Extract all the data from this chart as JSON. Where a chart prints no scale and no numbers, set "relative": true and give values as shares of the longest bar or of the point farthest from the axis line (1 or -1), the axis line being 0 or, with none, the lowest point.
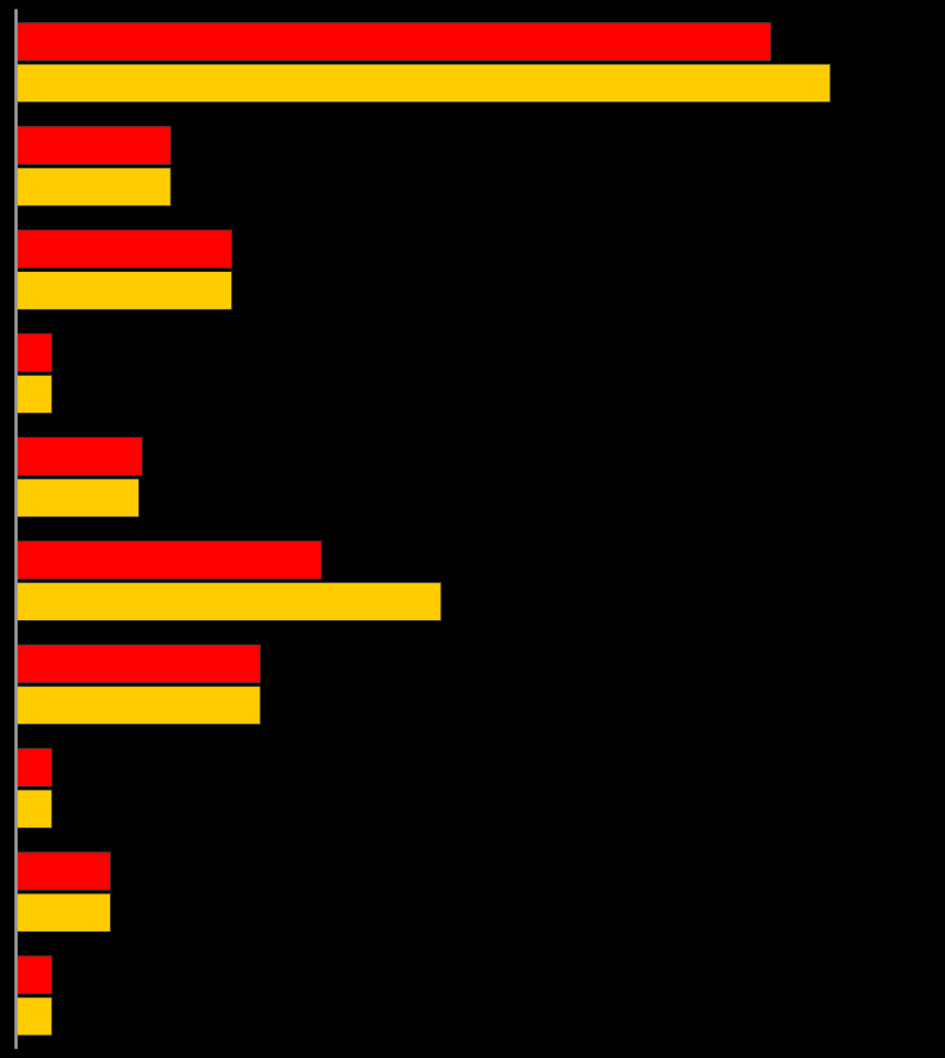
{
  "chart_data": {
    "type": "bar",
    "orientation": "horizontal",
    "relative": true,
    "categories": [
      null,
      null,
      null,
      null,
      null,
      null,
      null,
      null,
      null,
      null
    ],
    "series": [
      {
        "color": "#ff0000",
        "values": [
          0.927,
          0.19,
          0.265,
          0.044,
          0.155,
          0.375,
          0.3,
          0.044,
          0.116,
          0.044
        ]
      },
      {
        "color": "#ffcc00",
        "values": [
          1,
          0.19,
          0.265,
          0.044,
          0.151,
          0.522,
          0.3,
          0.044,
          0.116,
          0.044
        ]
      }
    ]
  }
}
